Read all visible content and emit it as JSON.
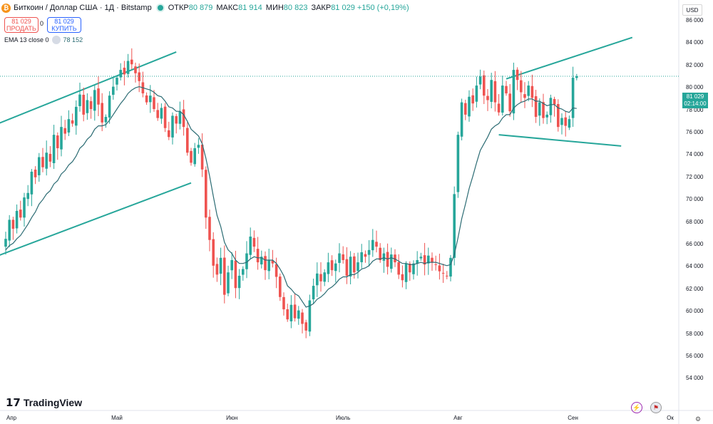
{
  "header": {
    "logo_glyph": "₿",
    "title": "Биткоин / Доллар США · 1Д · Bitstamp",
    "open_label": "ОТКР",
    "open_value": "80 879",
    "high_label": "МАКС",
    "high_value": "81 914",
    "low_label": "МИН",
    "low_value": "80 823",
    "close_label": "ЗАКР",
    "close_value": "81 029",
    "change_value": "+150 (+0,19%)"
  },
  "trade": {
    "sell_price": "81 029",
    "sell_label": "ПРОДАТЬ",
    "spread": "0",
    "buy_price": "81 029",
    "buy_label": "КУПИТЬ"
  },
  "indicator": {
    "label": "EMA 13 close 0",
    "value": "78 152"
  },
  "currency": "USD",
  "last_price": {
    "price": "81 029",
    "countdown": "02:14:00"
  },
  "branding": {
    "name": "TradingView"
  },
  "colors": {
    "up": "#26a69a",
    "down": "#ef5350",
    "ema": "#2b6b73",
    "trendline": "#26a69a",
    "accent": "#2962ff"
  },
  "chart_data": {
    "type": "candlestick",
    "title": "Биткоин / Доллар США · 1Д · Bitstamp",
    "ylim": [
      53000,
      87000
    ],
    "y_ticks": [
      "86 000",
      "84 000",
      "82 000",
      "80 000",
      "78 000",
      "76 000",
      "74 000",
      "72 000",
      "70 000",
      "68 000",
      "66 000",
      "64 000",
      "62 000",
      "60 000",
      "58 000",
      "56 000",
      "54 000"
    ],
    "y_tick_values": [
      86000,
      84000,
      82000,
      80000,
      78000,
      76000,
      74000,
      72000,
      70000,
      68000,
      66000,
      64000,
      62000,
      60000,
      58000,
      56000,
      54000
    ],
    "x_ticks": [
      "Апр",
      "Май",
      "Июн",
      "Июль",
      "Авг",
      "Сен",
      "Ок"
    ],
    "x_tick_days": [
      0,
      30,
      61,
      91,
      122,
      153,
      183
    ],
    "last_price_value": 81029,
    "ema_label": "EMA 13 close 0",
    "closes": [
      66500,
      68200,
      67400,
      69000,
      68400,
      70200,
      70600,
      72500,
      72000,
      73800,
      72900,
      74200,
      73400,
      75800,
      74600,
      76500,
      75900,
      77200,
      76800,
      78300,
      79400,
      77600,
      78900,
      78100,
      79800,
      78500,
      76900,
      77400,
      79300,
      80100,
      80900,
      81600,
      81200,
      82400,
      82100,
      81300,
      80600,
      79500,
      78700,
      79300,
      78100,
      77300,
      78200,
      76400,
      75600,
      77500,
      76800,
      77900,
      76500,
      74200,
      73300,
      74600,
      74900,
      72700,
      68400,
      66400,
      64100,
      63300,
      64800,
      61500,
      63500,
      64600,
      62100,
      63200,
      63800,
      65200,
      66700,
      65800,
      64400,
      64900,
      63700,
      64600,
      64300,
      63100,
      61300,
      60200,
      59300,
      60600,
      59400,
      60100,
      58900,
      58300,
      61000,
      62300,
      63400,
      62700,
      63500,
      64400,
      63700,
      64300,
      65200,
      64600,
      63200,
      64900,
      63500,
      64400,
      65300,
      64900,
      65500,
      66400,
      65800,
      64600,
      65200,
      64000,
      65100,
      64400,
      63300,
      62800,
      64300,
      63500,
      64300,
      64600,
      64900,
      64200,
      65000,
      64400,
      64200,
      63600,
      63400,
      63200,
      64800,
      70500,
      75800,
      78700,
      77600,
      79200,
      78600,
      80200,
      81000,
      79300,
      78900,
      80700,
      78700,
      77800,
      80200,
      79500,
      77900,
      81600,
      80700,
      79600,
      79100,
      80200,
      79100,
      77400,
      78700,
      77300,
      77600,
      79100,
      78500,
      76500,
      77300,
      76600,
      77200,
      80900,
      81029
    ],
    "ema13": [
      65500,
      65900,
      66100,
      66500,
      66800,
      67300,
      67800,
      68400,
      68900,
      69600,
      70000,
      70500,
      70800,
      71400,
      71700,
      72300,
      72600,
      73100,
      73400,
      73900,
      74600,
      74900,
      75400,
      75700,
      76300,
      76600,
      76600,
      76700,
      77100,
      77600,
      78100,
      78600,
      79000,
      79500,
      79800,
      80000,
      80100,
      80000,
      79900,
      79800,
      79600,
      79300,
      79200,
      78800,
      78300,
      78200,
      77900,
      77900,
      77600,
      77000,
      76300,
      76000,
      75700,
      75000,
      73700,
      72100,
      70300,
      68600,
      67600,
      66200,
      65500,
      65200,
      64600,
      64300,
      64300,
      64400,
      64700,
      64900,
      64800,
      64800,
      64600,
      64600,
      64600,
      64300,
      63800,
      63200,
      62300,
      62000,
      61600,
      61400,
      60900,
      60400,
      60500,
      60700,
      61100,
      61300,
      61600,
      62000,
      62200,
      62500,
      62900,
      63100,
      63100,
      63300,
      63300,
      63500,
      63800,
      63900,
      64100,
      64500,
      64700,
      64700,
      64800,
      64700,
      64800,
      64700,
      64500,
      64300,
      64300,
      64200,
      64200,
      64300,
      64400,
      64300,
      64400,
      64400,
      64400,
      64300,
      64200,
      64100,
      64200,
      65100,
      66600,
      68300,
      69600,
      71000,
      72100,
      73300,
      74400,
      75000,
      75600,
      76300,
      76600,
      76800,
      77300,
      77600,
      77600,
      78200,
      78500,
      78700,
      78800,
      79000,
      79000,
      78800,
      78800,
      78600,
      78400,
      78500,
      78500,
      78200,
      78100,
      77900,
      77800,
      78200,
      78152
    ],
    "trendlines": [
      {
        "name": "spring-upper",
        "from": [
          -2,
          76800
        ],
        "to": [
          46,
          83200
        ]
      },
      {
        "name": "spring-lower",
        "from": [
          -2,
          65000
        ],
        "to": [
          50,
          71500
        ]
      },
      {
        "name": "sep-upper",
        "from": [
          135,
          80800
        ],
        "to": [
          169,
          84500
        ]
      },
      {
        "name": "sep-lower",
        "from": [
          133,
          75800
        ],
        "to": [
          166,
          74800
        ]
      }
    ]
  }
}
